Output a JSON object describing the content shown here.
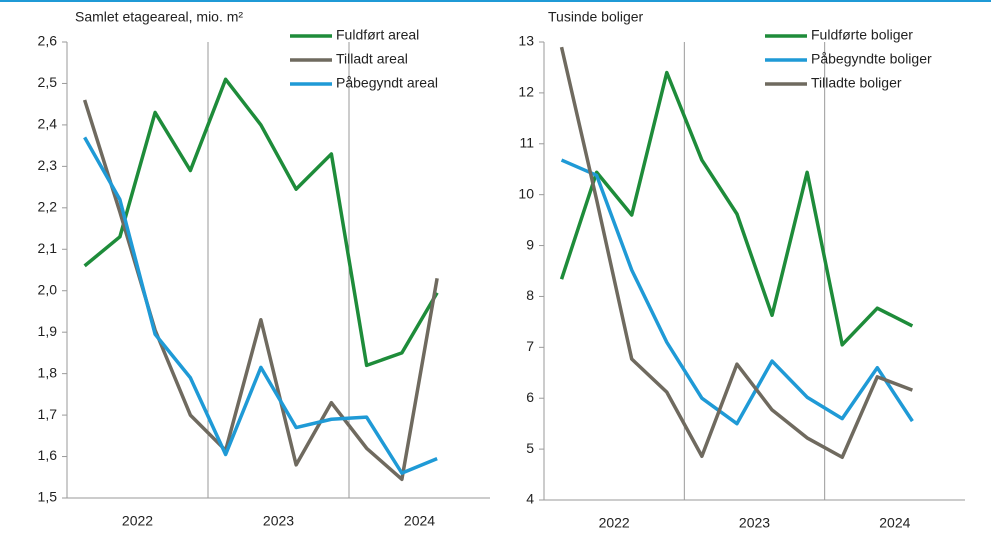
{
  "chart_data": [
    {
      "type": "line",
      "title": "Samlet etageareal, mio. m²",
      "categories": [
        null,
        "2022",
        null,
        null,
        null,
        "2023",
        null,
        null,
        null,
        "2024",
        null,
        null
      ],
      "series": [
        {
          "name": "Fuldført areal",
          "color": "#1e8c3a",
          "values": [
            2.06,
            2.13,
            2.43,
            2.29,
            2.51,
            2.4,
            2.245,
            2.33,
            1.82,
            1.85,
            1.995,
            null
          ]
        },
        {
          "name": "Tilladt areal",
          "color": "#6f6a5f",
          "values": [
            2.46,
            2.19,
            1.905,
            1.7,
            1.615,
            1.93,
            1.58,
            1.73,
            1.62,
            1.545,
            2.03,
            null
          ]
        },
        {
          "name": "Påbegyndt areal",
          "color": "#1f9ad6",
          "values": [
            2.37,
            2.22,
            1.895,
            1.79,
            1.605,
            1.815,
            1.67,
            1.69,
            1.695,
            1.56,
            1.595,
            null
          ]
        }
      ],
      "ylim": [
        1.5,
        2.6
      ],
      "yticks": [
        {
          "value": 1.5,
          "label": "1,5"
        },
        {
          "value": 1.6,
          "label": "1,6"
        },
        {
          "value": 1.7,
          "label": "1,7"
        },
        {
          "value": 1.8,
          "label": "1,8"
        },
        {
          "value": 1.9,
          "label": "1,9"
        },
        {
          "value": 2.0,
          "label": "2,0"
        },
        {
          "value": 2.1,
          "label": "2,1"
        },
        {
          "value": 2.2,
          "label": "2,2"
        },
        {
          "value": 2.3,
          "label": "2,3"
        },
        {
          "value": 2.4,
          "label": "2,4"
        },
        {
          "value": 2.5,
          "label": "2,5"
        },
        {
          "value": 2.6,
          "label": "2,6"
        }
      ],
      "legend": "upper right"
    },
    {
      "type": "line",
      "title": "Tusinde boliger",
      "categories": [
        null,
        "2022",
        null,
        null,
        null,
        "2023",
        null,
        null,
        null,
        "2024",
        null,
        null
      ],
      "series": [
        {
          "name": "Fuldførte boliger",
          "color": "#1e8c3a",
          "values": [
            8.34,
            10.44,
            9.6,
            12.4,
            10.68,
            9.62,
            7.63,
            10.44,
            7.05,
            7.77,
            7.42,
            null
          ]
        },
        {
          "name": "Påbegyndte boliger",
          "color": "#1f9ad6",
          "values": [
            10.68,
            10.38,
            8.52,
            7.1,
            6.0,
            5.5,
            6.73,
            6.02,
            5.6,
            6.6,
            5.55,
            null
          ]
        },
        {
          "name": "Tilladte boliger",
          "color": "#6f6a5f",
          "values": [
            12.9,
            9.9,
            6.77,
            6.12,
            4.86,
            6.67,
            5.77,
            5.22,
            4.84,
            6.42,
            6.16,
            null
          ]
        }
      ],
      "ylim": [
        4,
        13
      ],
      "yticks": [
        4,
        5,
        6,
        7,
        8,
        9,
        10,
        11,
        12,
        13
      ],
      "legend": "upper right"
    }
  ]
}
